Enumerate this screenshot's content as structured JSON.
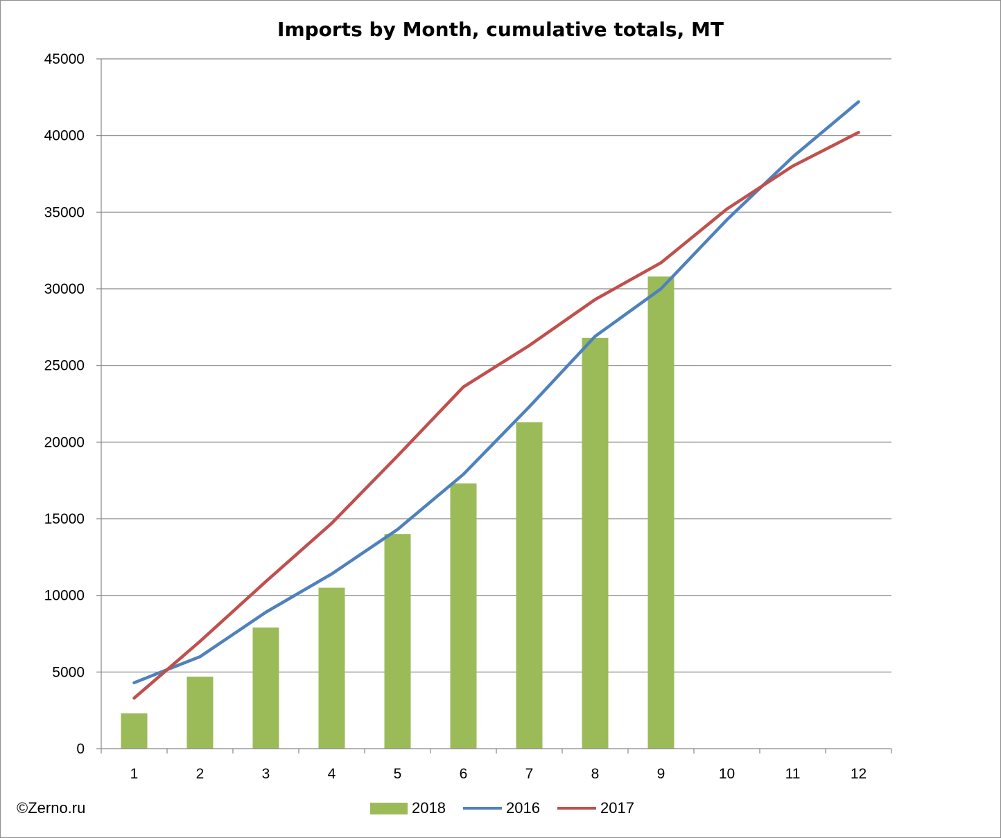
{
  "watermark": "©Zerno.ru",
  "chart_data": {
    "type": "bar",
    "title": "Imports by Month, cumulative totals, MT",
    "xlabel": "",
    "ylabel": "",
    "categories": [
      "1",
      "2",
      "3",
      "4",
      "5",
      "6",
      "7",
      "8",
      "9",
      "10",
      "11",
      "12"
    ],
    "ylim": [
      0,
      45000
    ],
    "yticks": [
      0,
      5000,
      10000,
      15000,
      20000,
      25000,
      30000,
      35000,
      40000,
      45000
    ],
    "grid": true,
    "legend_position": "bottom",
    "series": [
      {
        "name": "2018",
        "type": "bar",
        "color": "#9bbb59",
        "values": [
          2300,
          4700,
          7900,
          10500,
          14000,
          17300,
          21300,
          26800,
          30800,
          null,
          null,
          null
        ]
      },
      {
        "name": "2016",
        "type": "line",
        "color": "#4f81bd",
        "values": [
          4300,
          6000,
          8900,
          11400,
          14300,
          17900,
          22300,
          26900,
          30000,
          34500,
          38600,
          42200
        ]
      },
      {
        "name": "2017",
        "type": "line",
        "color": "#c0504d",
        "values": [
          3300,
          7000,
          10900,
          14700,
          19100,
          23600,
          26300,
          29300,
          31700,
          35200,
          38000,
          40200
        ]
      }
    ]
  }
}
